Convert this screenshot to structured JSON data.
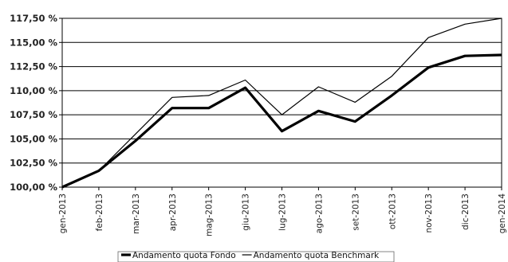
{
  "chart_data": {
    "type": "line",
    "categories": [
      "gen-2013",
      "feb-2013",
      "mar-2013",
      "apr-2013",
      "mag-2013",
      "giu-2013",
      "lug-2013",
      "ago-2013",
      "set-2013",
      "ott-2013",
      "nov-2013",
      "dic-2013",
      "gen-2014"
    ],
    "series": [
      {
        "name": "Andamento quota Fondo",
        "values": [
          100.0,
          101.7,
          104.8,
          108.2,
          108.2,
          110.3,
          105.8,
          107.9,
          106.8,
          109.5,
          112.4,
          113.6,
          113.7
        ],
        "color": "#000000",
        "style": "thick"
      },
      {
        "name": "Andamento quota Benchmark",
        "values": [
          100.0,
          101.7,
          105.5,
          109.3,
          109.5,
          111.1,
          107.5,
          110.4,
          108.8,
          111.5,
          115.5,
          116.9,
          117.5
        ],
        "color": "#000000",
        "style": "thin"
      }
    ],
    "y_ticks": [
      "100,00 %",
      "102,50 %",
      "105,00 %",
      "107,50 %",
      "110,00 %",
      "112,50 %",
      "115,00 %",
      "117,50 %"
    ],
    "y_tick_values": [
      100,
      102.5,
      105,
      107.5,
      110,
      112.5,
      115,
      117.5
    ],
    "ylim": [
      100,
      117.5
    ],
    "title": "",
    "xlabel": "",
    "ylabel": "",
    "grid": "horizontal",
    "legend_position": "bottom-center"
  }
}
